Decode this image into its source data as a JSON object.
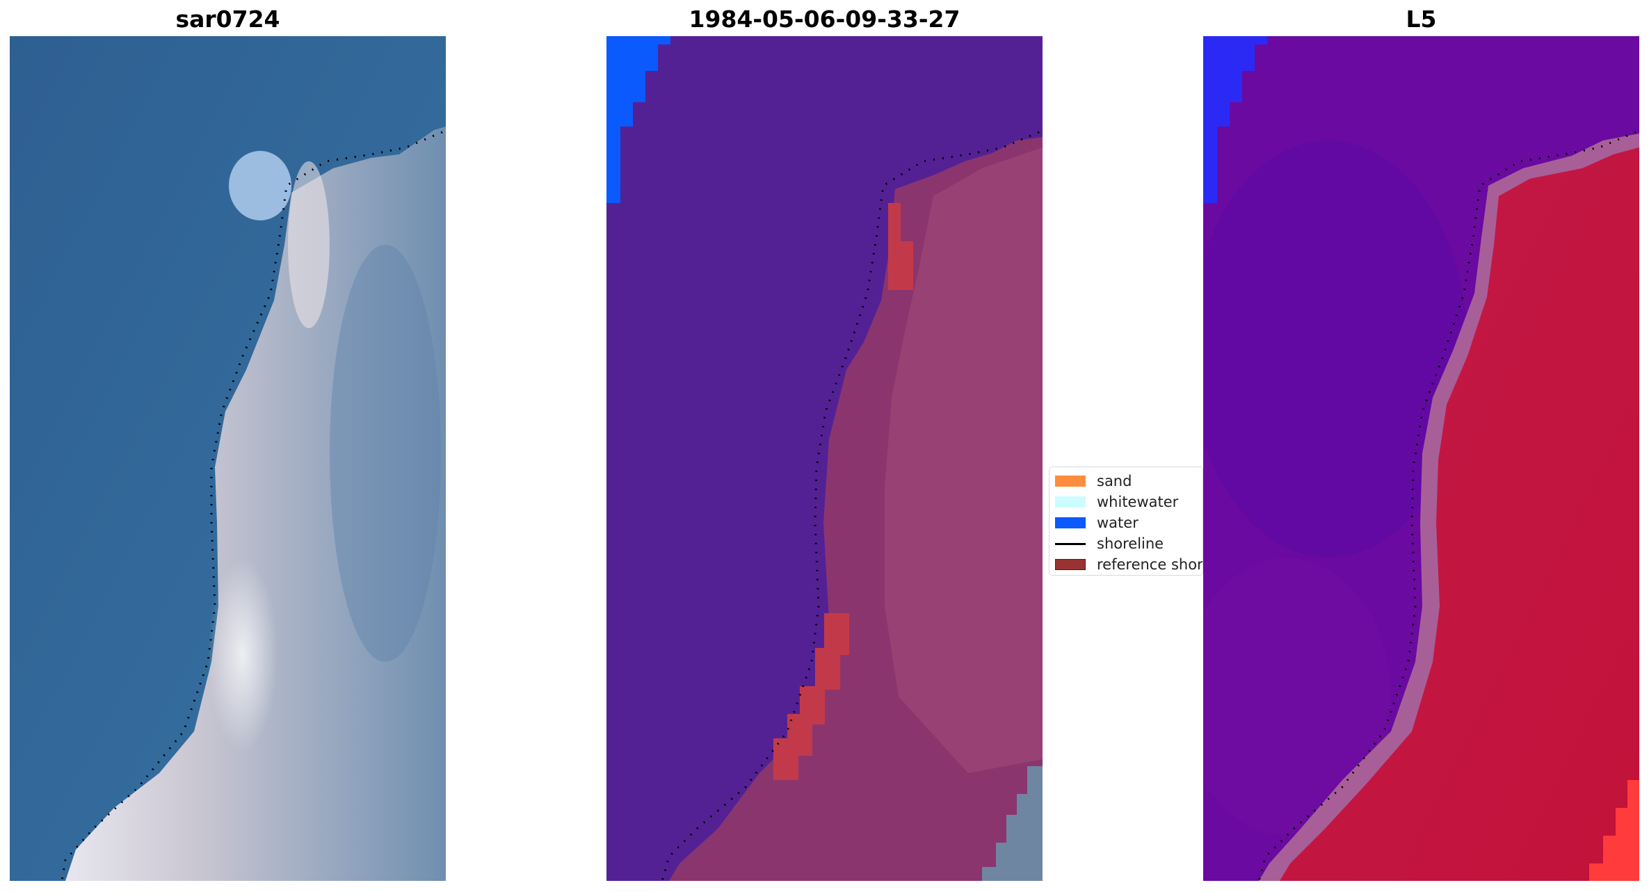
{
  "panels": [
    {
      "title": "sar0724",
      "image": "rgb-satellite-image"
    },
    {
      "title": "1984-05-06-09-33-27",
      "image": "classified-image"
    },
    {
      "title": "L5",
      "image": "index-image"
    }
  ],
  "legend": {
    "items": [
      {
        "label": "sand",
        "color": "#fd8d3c",
        "kind": "patch"
      },
      {
        "label": "whitewater",
        "color": "#ccfcff",
        "kind": "patch"
      },
      {
        "label": "water",
        "color": "#0a5afe",
        "kind": "patch"
      },
      {
        "label": "shoreline",
        "color": "#000000",
        "kind": "line"
      },
      {
        "label": "reference shoreline",
        "color": "#993333",
        "kind": "patch"
      }
    ]
  },
  "colors": {
    "sea_rgb": "#366f9d",
    "land_rgb": "#a5b2c6",
    "classified_water": "#542195",
    "classified_land": "#8b356f",
    "index_water": "#6a0aa0",
    "index_land": "#c0143f"
  }
}
